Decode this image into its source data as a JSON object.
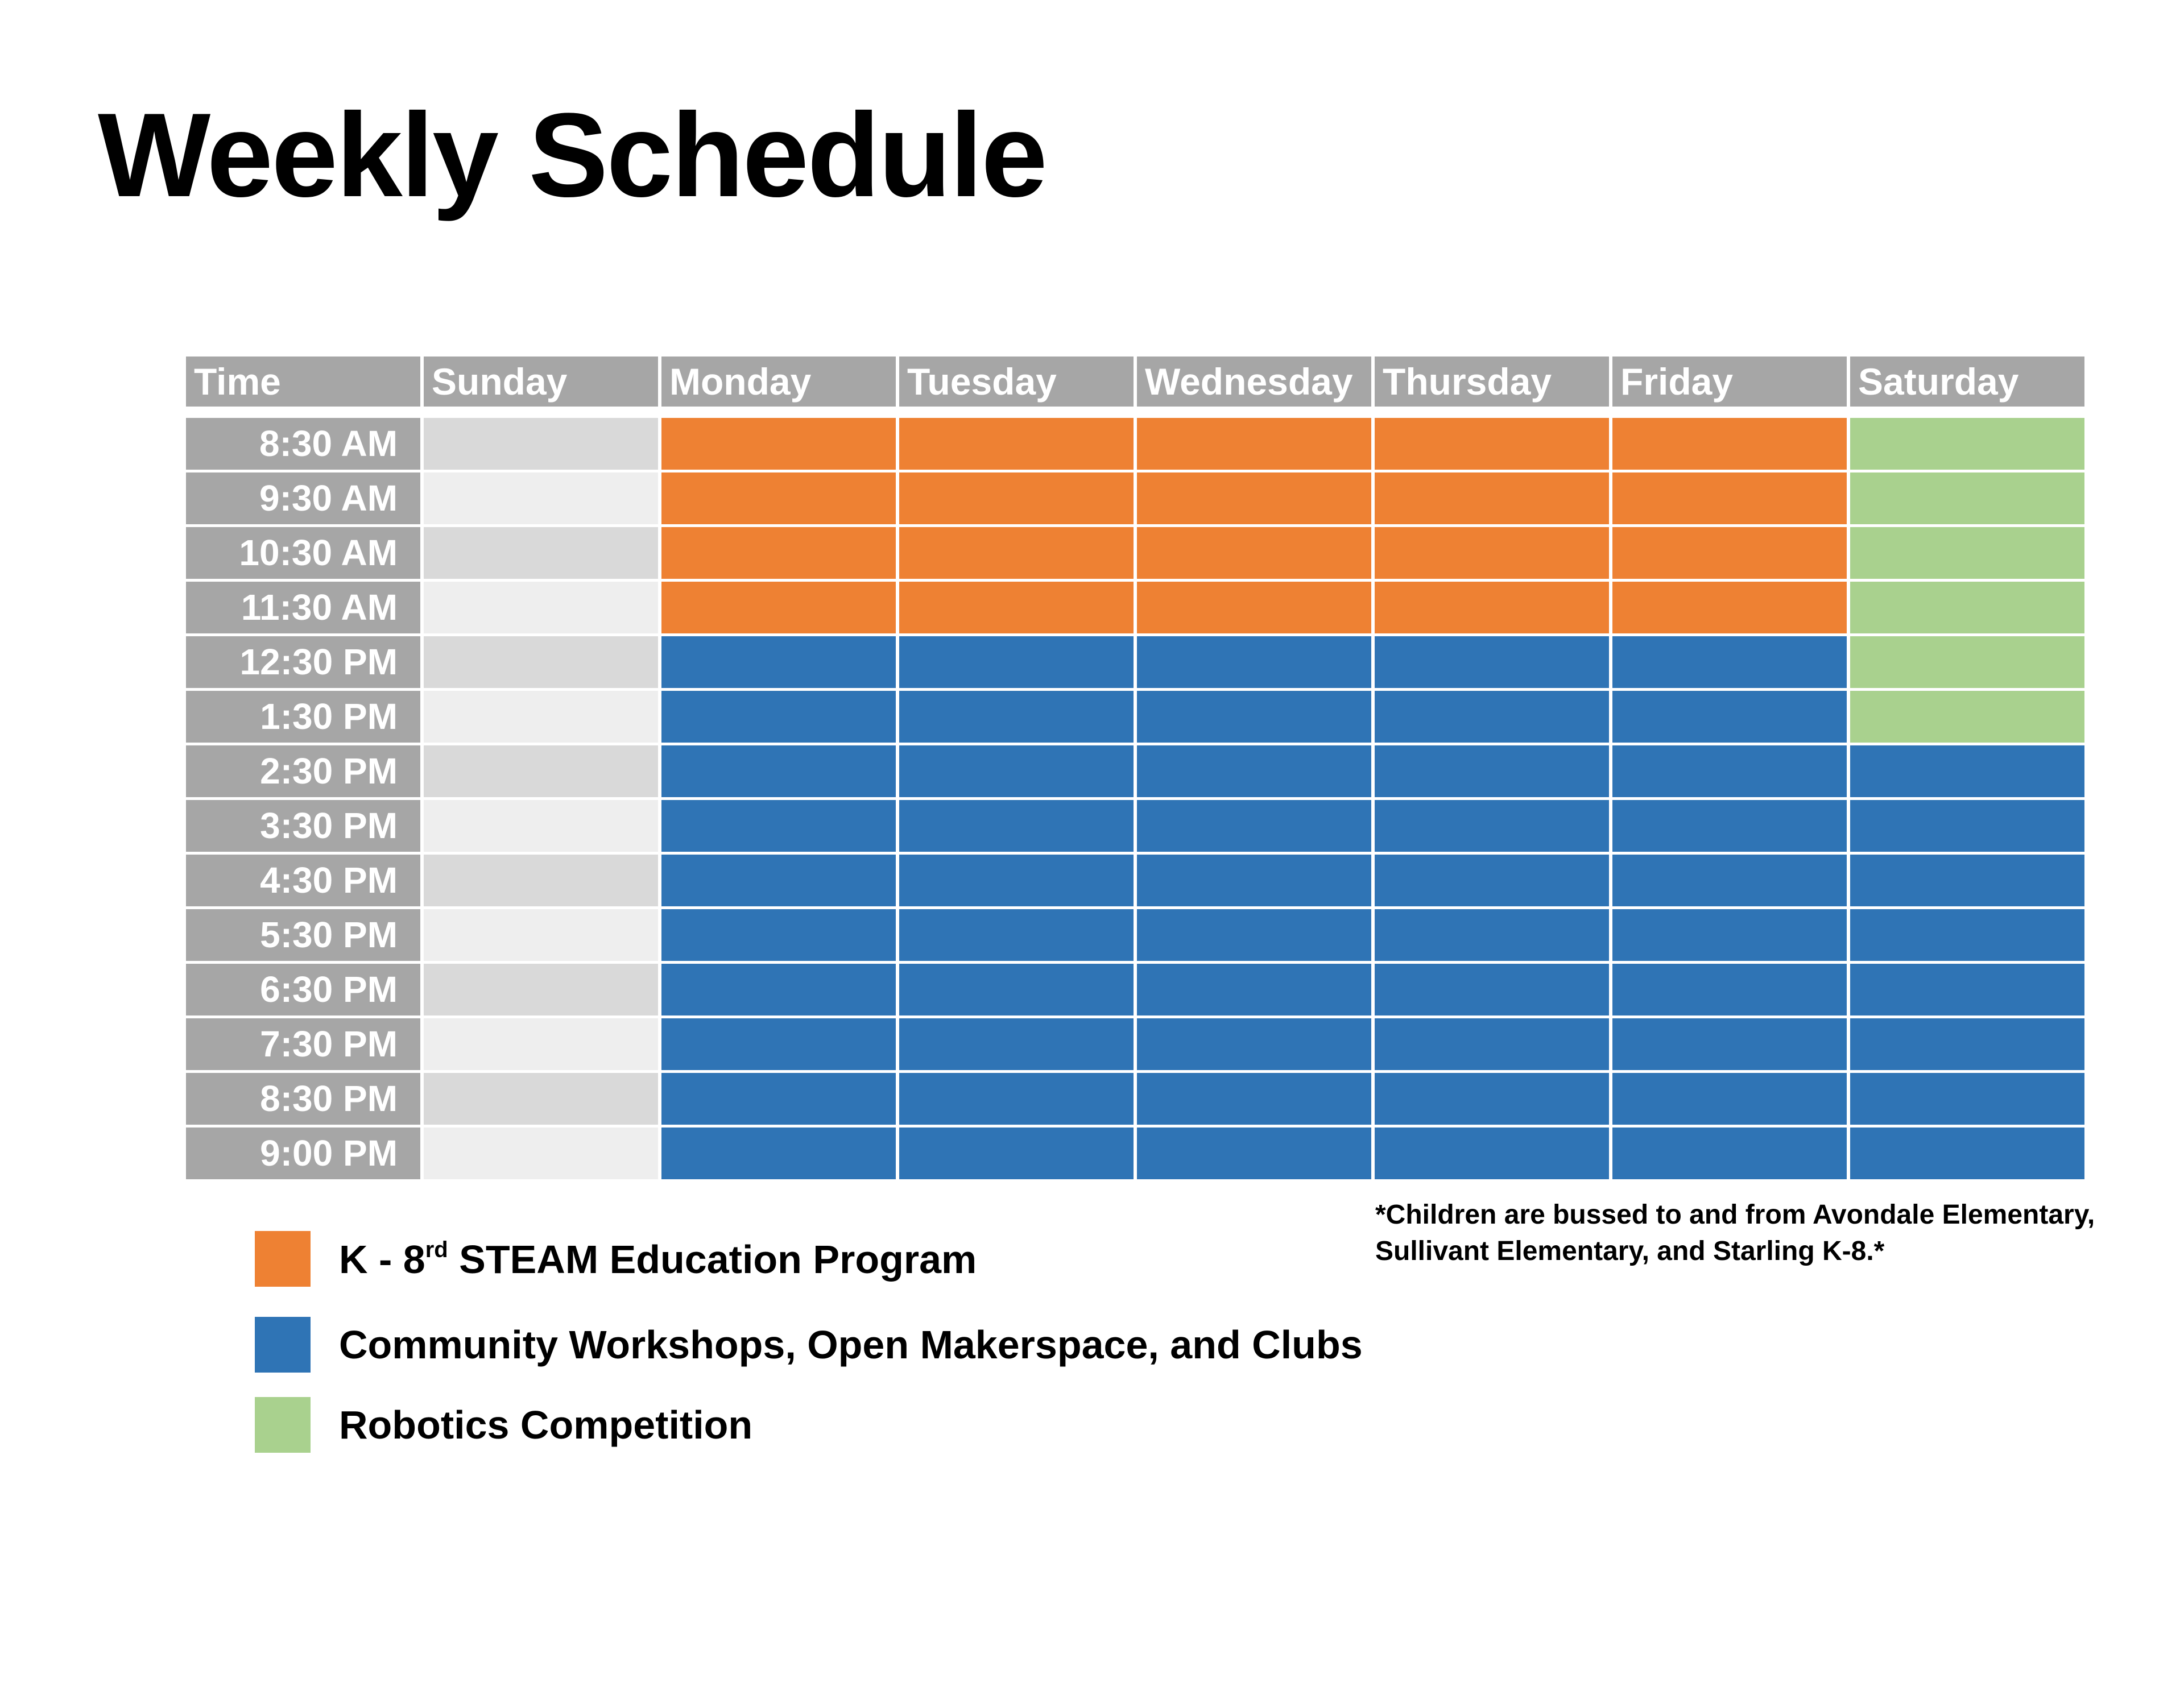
{
  "title": "Weekly Schedule",
  "colors": {
    "header_bg": "#a6a6a6",
    "sunday_even": "#d9d9d9",
    "sunday_odd": "#eeeeee",
    "steam": "#ee8133",
    "community": "#2f74b5",
    "robotics": "#a9d18e"
  },
  "schedule": {
    "headers": [
      "Time",
      "Sunday",
      "Monday",
      "Tuesday",
      "Wednesday",
      "Thursday",
      "Friday",
      "Saturday"
    ],
    "rows": [
      {
        "time": "8:30 AM",
        "cells": [
          "none",
          "steam",
          "steam",
          "steam",
          "steam",
          "steam",
          "robotics"
        ]
      },
      {
        "time": "9:30 AM",
        "cells": [
          "none",
          "steam",
          "steam",
          "steam",
          "steam",
          "steam",
          "robotics"
        ]
      },
      {
        "time": "10:30 AM",
        "cells": [
          "none",
          "steam",
          "steam",
          "steam",
          "steam",
          "steam",
          "robotics"
        ]
      },
      {
        "time": "11:30 AM",
        "cells": [
          "none",
          "steam",
          "steam",
          "steam",
          "steam",
          "steam",
          "robotics"
        ]
      },
      {
        "time": "12:30 PM",
        "cells": [
          "none",
          "community",
          "community",
          "community",
          "community",
          "community",
          "robotics"
        ]
      },
      {
        "time": "1:30 PM",
        "cells": [
          "none",
          "community",
          "community",
          "community",
          "community",
          "community",
          "robotics"
        ]
      },
      {
        "time": "2:30 PM",
        "cells": [
          "none",
          "community",
          "community",
          "community",
          "community",
          "community",
          "community"
        ]
      },
      {
        "time": "3:30 PM",
        "cells": [
          "none",
          "community",
          "community",
          "community",
          "community",
          "community",
          "community"
        ]
      },
      {
        "time": "4:30 PM",
        "cells": [
          "none",
          "community",
          "community",
          "community",
          "community",
          "community",
          "community"
        ]
      },
      {
        "time": "5:30 PM",
        "cells": [
          "none",
          "community",
          "community",
          "community",
          "community",
          "community",
          "community"
        ]
      },
      {
        "time": "6:30 PM",
        "cells": [
          "none",
          "community",
          "community",
          "community",
          "community",
          "community",
          "community"
        ]
      },
      {
        "time": "7:30 PM",
        "cells": [
          "none",
          "community",
          "community",
          "community",
          "community",
          "community",
          "community"
        ]
      },
      {
        "time": "8:30 PM",
        "cells": [
          "none",
          "community",
          "community",
          "community",
          "community",
          "community",
          "community"
        ]
      },
      {
        "time": "9:00 PM",
        "cells": [
          "none",
          "community",
          "community",
          "community",
          "community",
          "community",
          "community"
        ]
      }
    ]
  },
  "legend": [
    {
      "key": "steam",
      "label_pre": "K - 8",
      "label_sup": "rd",
      "label_post": " STEAM Education Program"
    },
    {
      "key": "community",
      "label_pre": "Community Workshops, Open Makerspace, and Clubs",
      "label_sup": "",
      "label_post": ""
    },
    {
      "key": "robotics",
      "label_pre": "Robotics Competition",
      "label_sup": "",
      "label_post": ""
    }
  ],
  "note": "*Children are bussed to and from Avondale Elementary, Sullivant Elementary, and Starling K-8.*"
}
